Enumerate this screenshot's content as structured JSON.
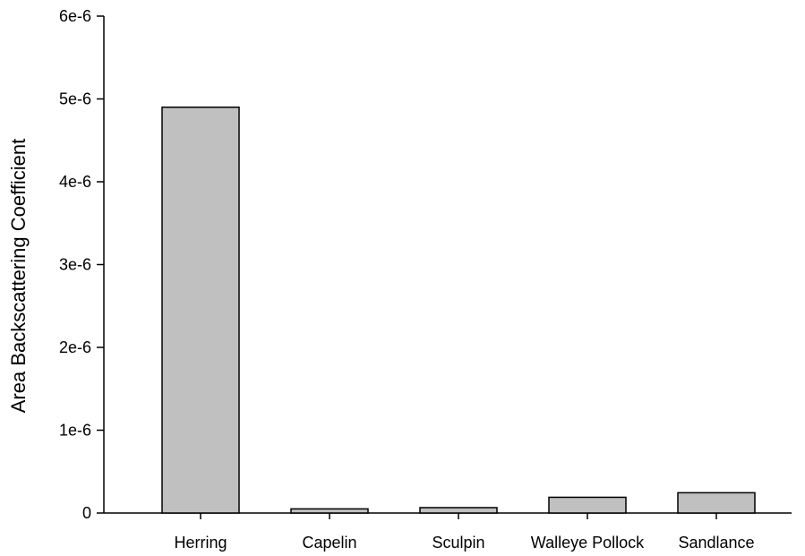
{
  "chart_data": {
    "type": "bar",
    "title": "",
    "xlabel": "",
    "ylabel": "Area Backscattering Coefficient",
    "categories": [
      "Herring",
      "Capelin",
      "Sculpin",
      "Walleye Pollock",
      "Sandlance"
    ],
    "values": [
      4.9e-06,
      5e-08,
      6.5e-08,
      1.9e-07,
      2.45e-07
    ],
    "ylim": [
      0,
      6e-06
    ],
    "yticks": [
      0,
      1e-06,
      2e-06,
      3e-06,
      4e-06,
      5e-06,
      6e-06
    ],
    "ytick_labels": [
      "0",
      "1e-6",
      "2e-6",
      "3e-6",
      "4e-6",
      "5e-6",
      "6e-6"
    ],
    "grid": false,
    "legend": "none",
    "colors": {
      "bar_fill": "#c0c0c0",
      "bar_stroke": "#000000",
      "axis": "#000000"
    }
  }
}
